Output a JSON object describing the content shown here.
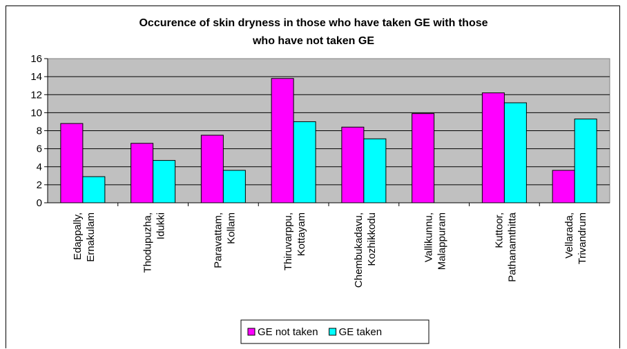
{
  "chart_data": {
    "type": "bar",
    "title": "Occurence of skin dryness in those who have taken GE with those who have not taken GE",
    "title_lines": [
      "Occurence of skin dryness in those who have taken GE with those",
      "who have not taken GE"
    ],
    "categories": [
      [
        "Edappally,",
        "Ernakulam"
      ],
      [
        "Thodupuzha,",
        "Idukki"
      ],
      [
        "Paravattam,",
        "Kollam"
      ],
      [
        "Thiruvarppu,",
        "Kottayam"
      ],
      [
        "Chembukadavu,",
        "Kozhikkodu"
      ],
      [
        "Vallikunnu,",
        "Malappuram"
      ],
      [
        "Kuttoor,",
        "Pathanamthitta"
      ],
      [
        "Vellarada,",
        "Trivandrum"
      ]
    ],
    "series": [
      {
        "name": "GE not taken",
        "color": "#ff00ff",
        "values": [
          8.8,
          6.6,
          7.5,
          13.8,
          8.4,
          9.9,
          12.2,
          3.6
        ]
      },
      {
        "name": "GE taken",
        "color": "#00ffff",
        "values": [
          2.9,
          4.7,
          3.6,
          9.0,
          7.1,
          0,
          11.1,
          9.3
        ]
      }
    ],
    "ylim": [
      0,
      16
    ],
    "yticks": [
      "0",
      "2",
      "4",
      "6",
      "8",
      "10",
      "12",
      "14",
      "16"
    ],
    "plot_background": "#c0c0c0",
    "grid": true,
    "legend_position": "bottom"
  }
}
